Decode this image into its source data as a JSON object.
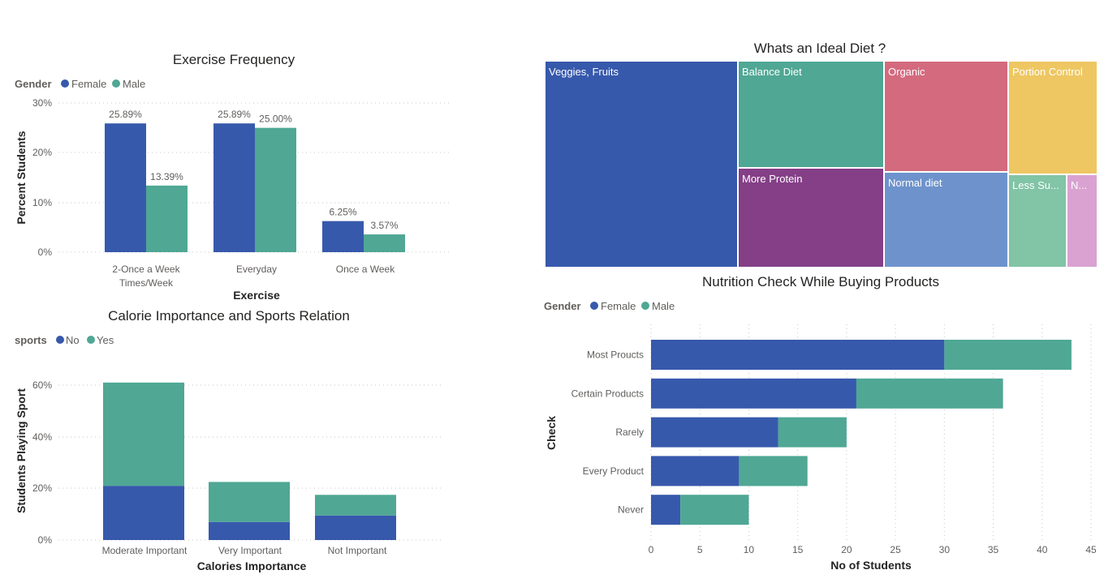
{
  "colors": {
    "female": "#3759ac",
    "male": "#4fa794",
    "no": "#3759ac",
    "yes": "#4fa794"
  },
  "chart_data": [
    {
      "id": "exercise",
      "type": "bar",
      "title": "Exercise Frequency",
      "legend_title": "Gender",
      "xlabel": "Exercise",
      "ylabel": "Percent Students",
      "yticks": [
        "30%",
        "20%",
        "10%",
        "0%"
      ],
      "ylim": [
        0,
        30
      ],
      "categories": [
        [
          "2-Once a Week",
          "Times/Week"
        ],
        [
          "Everyday"
        ],
        [
          "Once a Week"
        ]
      ],
      "series": [
        {
          "name": "Female",
          "color": "#3759ac",
          "values": [
            25.89,
            25.89,
            6.25
          ],
          "labels": [
            "25.89%",
            "25.89%",
            "6.25%"
          ]
        },
        {
          "name": "Male",
          "color": "#4fa794",
          "values": [
            13.39,
            25.0,
            3.57
          ],
          "labels": [
            "13.39%",
            "25.00%",
            "3.57%"
          ]
        }
      ]
    },
    {
      "id": "calorie",
      "type": "bar",
      "stacked": true,
      "title": "Calorie Importance and Sports Relation",
      "legend_title": "sports",
      "xlabel": "Calories Importance",
      "ylabel": "Students Playing Sport",
      "yticks": [
        "60%",
        "40%",
        "20%",
        "0%"
      ],
      "ylim": [
        0,
        60
      ],
      "categories": [
        "Moderate Important",
        "Very Important",
        "Not Important"
      ],
      "series": [
        {
          "name": "No",
          "color": "#3759ac",
          "values": [
            21,
            7,
            9.5
          ]
        },
        {
          "name": "Yes",
          "color": "#4fa794",
          "values": [
            40,
            15.5,
            8
          ]
        }
      ]
    },
    {
      "id": "diet",
      "type": "treemap",
      "title": "Whats an Ideal Diet ?",
      "items": [
        {
          "label": "Veggies, Fruits",
          "value": 34,
          "color": "#3759ac"
        },
        {
          "label": "Balance Diet",
          "value": 12.5,
          "color": "#4fa794"
        },
        {
          "label": "More Protein",
          "value": 12.5,
          "color": "#843f87"
        },
        {
          "label": "Organic",
          "value": 12,
          "color": "#d46a7e"
        },
        {
          "label": "Normal diet",
          "value": 10,
          "color": "#6e93cc"
        },
        {
          "label": "Portion Control",
          "value": 10.5,
          "color": "#eec762"
        },
        {
          "label": "Less Su...",
          "value": 5,
          "color": "#81c4a6"
        },
        {
          "label": "N...",
          "value": 2.5,
          "color": "#d9a2d1"
        }
      ]
    },
    {
      "id": "nutrition",
      "type": "bar",
      "orientation": "horizontal",
      "stacked": true,
      "title": "Nutrition Check While Buying Products",
      "legend_title": "Gender",
      "xlabel": "No of Students",
      "ylabel": "Check",
      "xlim": [
        0,
        45
      ],
      "xticks": [
        "0",
        "5",
        "10",
        "15",
        "20",
        "25",
        "30",
        "35",
        "40",
        "45"
      ],
      "categories": [
        "Most Proucts",
        "Certain Products",
        "Rarely",
        "Every Product",
        "Never"
      ],
      "series": [
        {
          "name": "Female",
          "color": "#3759ac",
          "values": [
            30,
            21,
            13,
            9,
            3
          ]
        },
        {
          "name": "Male",
          "color": "#4fa794",
          "values": [
            13,
            15,
            7,
            7,
            7
          ]
        }
      ]
    }
  ]
}
